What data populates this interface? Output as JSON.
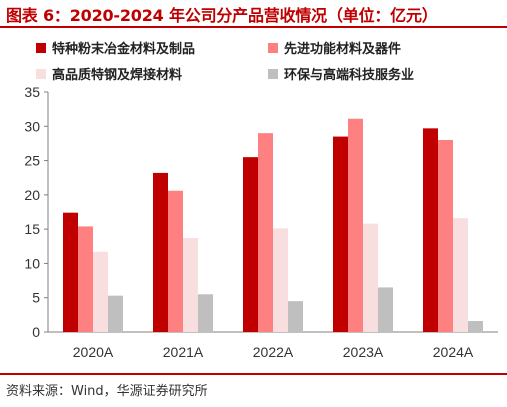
{
  "header": {
    "title": "图表 6：2020-2024 年公司分产品营收情况（单位：亿元）"
  },
  "footer": {
    "source": "资料来源：Wind，华源证券研究所"
  },
  "chart_data": {
    "type": "bar",
    "title": "图表 6：2020-2024 年公司分产品营收情况（单位：亿元）",
    "categories": [
      "2020A",
      "2021A",
      "2022A",
      "2023A",
      "2024A"
    ],
    "ylim": [
      0,
      35
    ],
    "yticks": [
      0,
      5,
      10,
      15,
      20,
      25,
      30,
      35
    ],
    "grid": false,
    "legend_position": "top",
    "series": [
      {
        "name": "特种粉末冶金材料及制品",
        "color": "#c00000",
        "values": [
          17.4,
          23.2,
          25.5,
          28.5,
          29.7
        ]
      },
      {
        "name": "先进功能材料及器件",
        "color": "#ff8080",
        "values": [
          15.4,
          20.6,
          29.0,
          31.1,
          28.0
        ]
      },
      {
        "name": "高品质特钢及焊接材料",
        "color": "#f8dede",
        "values": [
          11.7,
          13.7,
          15.1,
          15.8,
          16.6
        ]
      },
      {
        "name": "环保与高端科技服务业",
        "color": "#bfbfbf",
        "values": [
          5.3,
          5.5,
          4.5,
          6.5,
          1.6
        ]
      }
    ]
  }
}
